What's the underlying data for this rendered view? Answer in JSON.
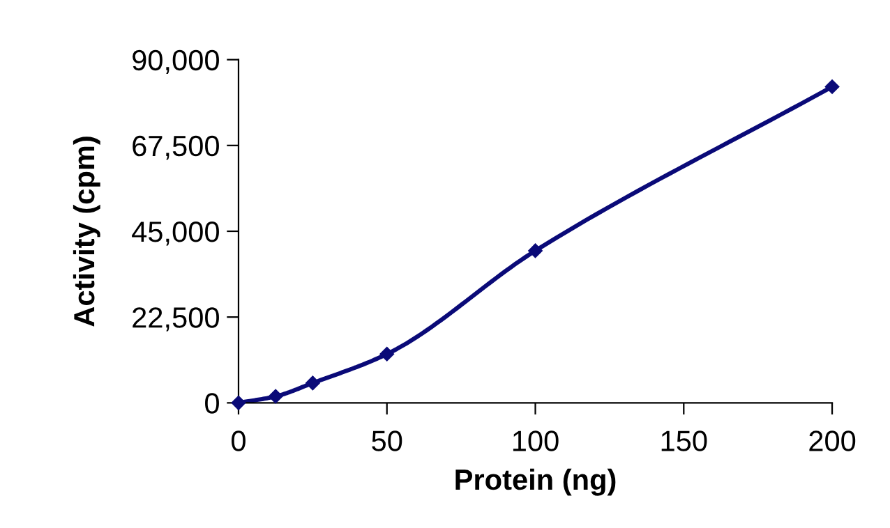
{
  "chart_data": {
    "type": "line",
    "xlabel": "Protein (ng)",
    "ylabel": "Activity (cpm)",
    "x": [
      0,
      12.5,
      25,
      50,
      100,
      200
    ],
    "series": [
      {
        "color": "#0a0a78",
        "values": [
          0,
          1700,
          5200,
          12800,
          39900,
          82900
        ]
      }
    ],
    "xlim": [
      0,
      200
    ],
    "xticks": [
      0,
      50,
      100,
      150,
      200
    ],
    "ylim": [
      0,
      90000
    ],
    "yticks": [
      {
        "value": 0,
        "label": "0"
      },
      {
        "value": 22500,
        "label": "22,500"
      },
      {
        "value": 45000,
        "label": "45,000"
      },
      {
        "value": 67500,
        "label": "67,500"
      },
      {
        "value": 90000,
        "label": "90,000"
      }
    ],
    "grid": false,
    "legend": false,
    "marker": "diamond",
    "line_style": "solid"
  }
}
